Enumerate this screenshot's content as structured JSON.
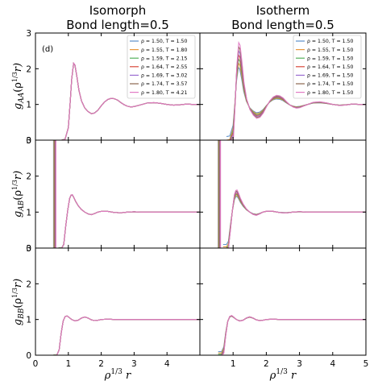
{
  "chart_data": {
    "type": "line",
    "panel_tag": "(d)",
    "columns": [
      {
        "title_line1": "Isomorph",
        "title_line2": "Bond length=0.5"
      },
      {
        "title_line1": "Isotherm",
        "title_line2": "Bond length=0.5"
      }
    ],
    "rows": [
      {
        "ylabel": "g_AA(ρ^1/3 r)",
        "ylabel_main": "g",
        "ylabel_sub": "AA",
        "ylabel_arg": "(ρ",
        "ylabel_sup": "1/3",
        "ylabel_tail": "r)",
        "ylim": [
          0,
          3
        ],
        "yticks": [
          "0",
          "1",
          "2",
          "3"
        ]
      },
      {
        "ylabel": "g_AB(ρ^1/3 r)",
        "ylabel_main": "g",
        "ylabel_sub": "AB",
        "ylabel_arg": "(ρ",
        "ylabel_sup": "1/3",
        "ylabel_tail": "r)",
        "ylim": [
          0,
          3
        ],
        "yticks": [
          "0",
          "1",
          "2",
          "3"
        ]
      },
      {
        "ylabel": "g_BB(ρ^1/3 r)",
        "ylabel_main": "g",
        "ylabel_sub": "BB",
        "ylabel_arg": "(ρ",
        "ylabel_sup": "1/3",
        "ylabel_tail": "r)",
        "ylim": [
          0,
          3
        ],
        "yticks": [
          "0",
          "1",
          "2",
          "3"
        ]
      }
    ],
    "xlabel": "ρ^1/3 r",
    "xlabel_main": "ρ",
    "xlabel_sup": "1/3",
    "xlabel_tail": " r",
    "xlim": [
      0,
      5
    ],
    "xticks_left": [
      "0",
      "1",
      "2",
      "3",
      "4"
    ],
    "xticks_right": [
      "1",
      "2",
      "3",
      "4",
      "5"
    ],
    "legend_position": "top-right",
    "series_isomorph": [
      {
        "name": "ρ = 1.50, T = 1.50",
        "rho": 1.5,
        "T": 1.5,
        "color": "#5b8fc9"
      },
      {
        "name": "ρ = 1.55, T = 1.80",
        "rho": 1.55,
        "T": 1.8,
        "color": "#e8973d"
      },
      {
        "name": "ρ = 1.59, T = 2.15",
        "rho": 1.59,
        "T": 2.15,
        "color": "#55b05a"
      },
      {
        "name": "ρ = 1.64, T = 2.55",
        "rho": 1.64,
        "T": 2.55,
        "color": "#d9483b"
      },
      {
        "name": "ρ = 1.69, T = 3.02",
        "rho": 1.69,
        "T": 3.02,
        "color": "#9b6ed1"
      },
      {
        "name": "ρ = 1.74, T = 3.57",
        "rho": 1.74,
        "T": 3.57,
        "color": "#8c6650"
      },
      {
        "name": "ρ = 1.80, T = 4.21",
        "rho": 1.8,
        "T": 4.21,
        "color": "#e27bc4"
      }
    ],
    "series_isotherm": [
      {
        "name": "ρ = 1.50, T = 1.50",
        "rho": 1.5,
        "T": 1.5,
        "color": "#5b8fc9"
      },
      {
        "name": "ρ = 1.55, T = 1.50",
        "rho": 1.55,
        "T": 1.5,
        "color": "#e8973d"
      },
      {
        "name": "ρ = 1.59, T = 1.50",
        "rho": 1.59,
        "T": 1.5,
        "color": "#55b05a"
      },
      {
        "name": "ρ = 1.64, T = 1.50",
        "rho": 1.64,
        "T": 1.5,
        "color": "#d9483b"
      },
      {
        "name": "ρ = 1.69, T = 1.50",
        "rho": 1.69,
        "T": 1.5,
        "color": "#9b6ed1"
      },
      {
        "name": "ρ = 1.74, T = 1.50",
        "rho": 1.74,
        "T": 1.5,
        "color": "#8c6650"
      },
      {
        "name": "ρ = 1.80, T = 1.50",
        "rho": 1.8,
        "T": 1.5,
        "color": "#e27bc4"
      }
    ],
    "curve_points": {
      "iso_AA": {
        "x": [
          0.8,
          0.9,
          1.0,
          1.06,
          1.1,
          1.16,
          1.2,
          1.26,
          1.32,
          1.4,
          1.5,
          1.6,
          1.7,
          1.8,
          1.9,
          2.0,
          2.1,
          2.2,
          2.3,
          2.4,
          2.5,
          2.6,
          2.7,
          2.8,
          2.9,
          3.0,
          3.2,
          3.4,
          3.6,
          3.8,
          4.0,
          4.2,
          4.4,
          4.6,
          4.8,
          5.0
        ],
        "y": [
          0.0,
          0.02,
          0.35,
          1.1,
          1.7,
          2.15,
          2.1,
          1.78,
          1.4,
          1.1,
          0.9,
          0.8,
          0.74,
          0.76,
          0.84,
          0.96,
          1.07,
          1.14,
          1.17,
          1.16,
          1.12,
          1.05,
          0.99,
          0.95,
          0.93,
          0.94,
          0.99,
          1.04,
          1.05,
          1.03,
          1.0,
          0.98,
          0.99,
          1.01,
          1.0,
          1.0
        ]
      },
      "iso_AB": {
        "x": [
          0.7,
          0.8,
          0.86,
          0.92,
          0.98,
          1.04,
          1.08,
          1.12,
          1.16,
          1.22,
          1.3,
          1.4,
          1.5,
          1.6,
          1.7,
          1.8,
          1.9,
          2.0,
          2.2,
          2.4,
          2.6,
          2.8,
          3.0,
          3.2,
          3.4,
          3.6,
          3.8,
          4.0,
          4.5,
          5.0
        ],
        "y": [
          0.0,
          0.0,
          0.1,
          0.6,
          1.05,
          1.38,
          1.47,
          1.48,
          1.42,
          1.3,
          1.18,
          1.07,
          1.0,
          0.95,
          0.93,
          0.96,
          1.0,
          1.02,
          1.02,
          0.99,
          0.98,
          1.0,
          1.01,
          1.0,
          1.0,
          1.0,
          1.0,
          1.0,
          1.0,
          1.0
        ]
      },
      "iso_BB": {
        "x": [
          0.55,
          0.65,
          0.72,
          0.78,
          0.84,
          0.9,
          0.96,
          1.02,
          1.1,
          1.2,
          1.3,
          1.4,
          1.5,
          1.6,
          1.7,
          1.8,
          1.9,
          2.0,
          2.2,
          2.4,
          2.6,
          2.8,
          3.0,
          3.5,
          4.0,
          4.5,
          5.0
        ],
        "y": [
          0.0,
          0.0,
          0.15,
          0.6,
          0.95,
          1.08,
          1.1,
          1.06,
          1.0,
          0.96,
          0.98,
          1.04,
          1.07,
          1.04,
          0.99,
          0.97,
          0.98,
          1.0,
          1.01,
          1.0,
          1.0,
          1.0,
          1.0,
          1.0,
          1.0,
          1.0,
          1.0
        ]
      }
    }
  }
}
